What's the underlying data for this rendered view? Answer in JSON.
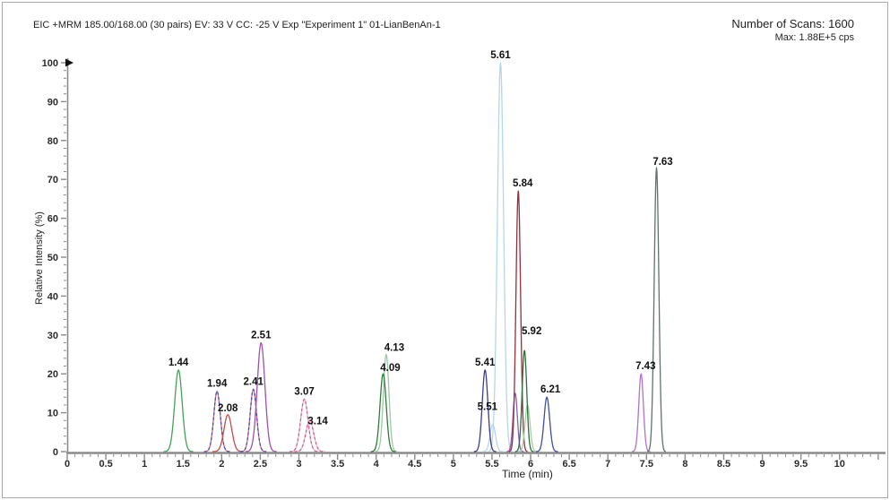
{
  "header": {
    "title": "EIC +MRM 185.00/168.00 (30 pairs) EV: 33 V CC: -25 V Exp \"Experiment 1\" 01-LianBenAn-1",
    "scans_label": "Number of Scans: 1600",
    "max_label": "Max: 1.88E+5 cps"
  },
  "chart_data": {
    "type": "line",
    "subtype": "chromatogram-gaussian-peaks",
    "title": "EIC +MRM 185.00/168.00 (30 pairs) EV: 33 V CC: -25 V Exp \"Experiment 1\" 01-LianBenAn-1",
    "xlabel": "Time (min)",
    "ylabel": "Relative Intensity (%)",
    "xlim": [
      0,
      10.56
    ],
    "ylim": [
      0,
      100
    ],
    "grid": false,
    "legend": false,
    "axis_color": "#8a8a8a",
    "tick_label_color": "#2a2a2a",
    "peak_label_color": "#111111",
    "x_major_step": 0.5,
    "x_minor_step": 0.1,
    "y_major_step": 10,
    "y_minor_step": 2,
    "x_tick_labels": [
      "0",
      "0.5",
      "1",
      "1.5",
      "2",
      "2.5",
      "3",
      "3.5",
      "4",
      "4.5",
      "5",
      "5.5",
      "6",
      "6.5",
      "7",
      "7.5",
      "8",
      "8.5",
      "9",
      "9.5",
      "10"
    ],
    "y_tick_labels": [
      "0",
      "10",
      "20",
      "30",
      "40",
      "50",
      "60",
      "70",
      "80",
      "90",
      "100"
    ],
    "max_marker": {
      "value_pct": 100,
      "shape": "right-triangle",
      "color": "#111111"
    },
    "peaks": [
      {
        "label": "1.44",
        "time": 1.44,
        "height_pct": 21,
        "sigma_min": 0.048,
        "color": "#44a158",
        "dashed": false
      },
      {
        "label": "1.94",
        "time": 1.94,
        "height_pct": 15.5,
        "sigma_min": 0.042,
        "color": "#4c4cae",
        "dashed": true,
        "underlay_color": "#c4687e"
      },
      {
        "label": "2.08",
        "time": 2.08,
        "height_pct": 9.5,
        "sigma_min": 0.05,
        "color": "#cc4a4a",
        "dashed": false,
        "label_dy": -4
      },
      {
        "label": "2.41",
        "time": 2.41,
        "height_pct": 16,
        "sigma_min": 0.042,
        "color": "#4c4cae",
        "dashed": true,
        "underlay_color": "#c4687e"
      },
      {
        "label": "2.51",
        "time": 2.51,
        "height_pct": 28,
        "sigma_min": 0.05,
        "color": "#a14fb4",
        "dashed": false
      },
      {
        "label": "3.14",
        "time": 3.14,
        "height_pct": 8,
        "sigma_min": 0.05,
        "color": "#cc6494",
        "dashed": true,
        "underlay_color": "#e7b2c8",
        "label_dx": 9,
        "label_dy": 4
      },
      {
        "label": "3.07",
        "time": 3.07,
        "height_pct": 13.5,
        "sigma_min": 0.048,
        "color": "#cc6494",
        "dashed": true,
        "underlay_color": "#e7b2c8"
      },
      {
        "label": "4.13",
        "time": 4.13,
        "height_pct": 25,
        "sigma_min": 0.036,
        "color": "#9acaa2",
        "dashed": false,
        "label_dx": 9,
        "label_dy": -4
      },
      {
        "label": "4.09",
        "time": 4.09,
        "height_pct": 20,
        "sigma_min": 0.04,
        "color": "#317a3e",
        "dashed": false,
        "label_dx": 8,
        "label_dy": -3
      },
      {
        "label": "5.51",
        "time": 5.51,
        "height_pct": 7,
        "sigma_min": 0.035,
        "color": "#b5d7e7",
        "dashed": false,
        "label_dx": -6,
        "label_dy": -16
      },
      {
        "label": "5.61",
        "time": 5.61,
        "height_pct": 100,
        "sigma_min": 0.04,
        "color": "#b5d7e7",
        "dashed": false
      },
      {
        "label": "5.41",
        "time": 5.41,
        "height_pct": 21,
        "sigma_min": 0.036,
        "color": "#3b3b90",
        "dashed": false
      },
      {
        "label": "",
        "time": 5.8,
        "height_pct": 15,
        "sigma_min": 0.028,
        "color": "#8f5cb3",
        "dashed": false
      },
      {
        "label": "5.84",
        "time": 5.84,
        "height_pct": 67,
        "sigma_min": 0.03,
        "color": "#93303c",
        "dashed": false,
        "label_dx": 5
      },
      {
        "label": "",
        "time": 5.96,
        "height_pct": 12,
        "sigma_min": 0.032,
        "color": "#a2cfa8",
        "dashed": false
      },
      {
        "label": "5.92",
        "time": 5.92,
        "height_pct": 26,
        "sigma_min": 0.03,
        "color": "#2e6e3c",
        "dashed": false,
        "label_dx": 8,
        "label_dy": -18
      },
      {
        "label": "6.21",
        "time": 6.21,
        "height_pct": 14,
        "sigma_min": 0.036,
        "color": "#3f4da3",
        "dashed": false,
        "label_dx": 4
      },
      {
        "label": "7.43",
        "time": 7.43,
        "height_pct": 20,
        "sigma_min": 0.03,
        "color": "#b173cb",
        "dashed": false,
        "label_dx": 5
      },
      {
        "label": "7.63",
        "time": 7.63,
        "height_pct": 73,
        "sigma_min": 0.03,
        "color": "#5f7370",
        "dashed": false,
        "label_dx": 7,
        "label_dy": -3
      }
    ]
  }
}
